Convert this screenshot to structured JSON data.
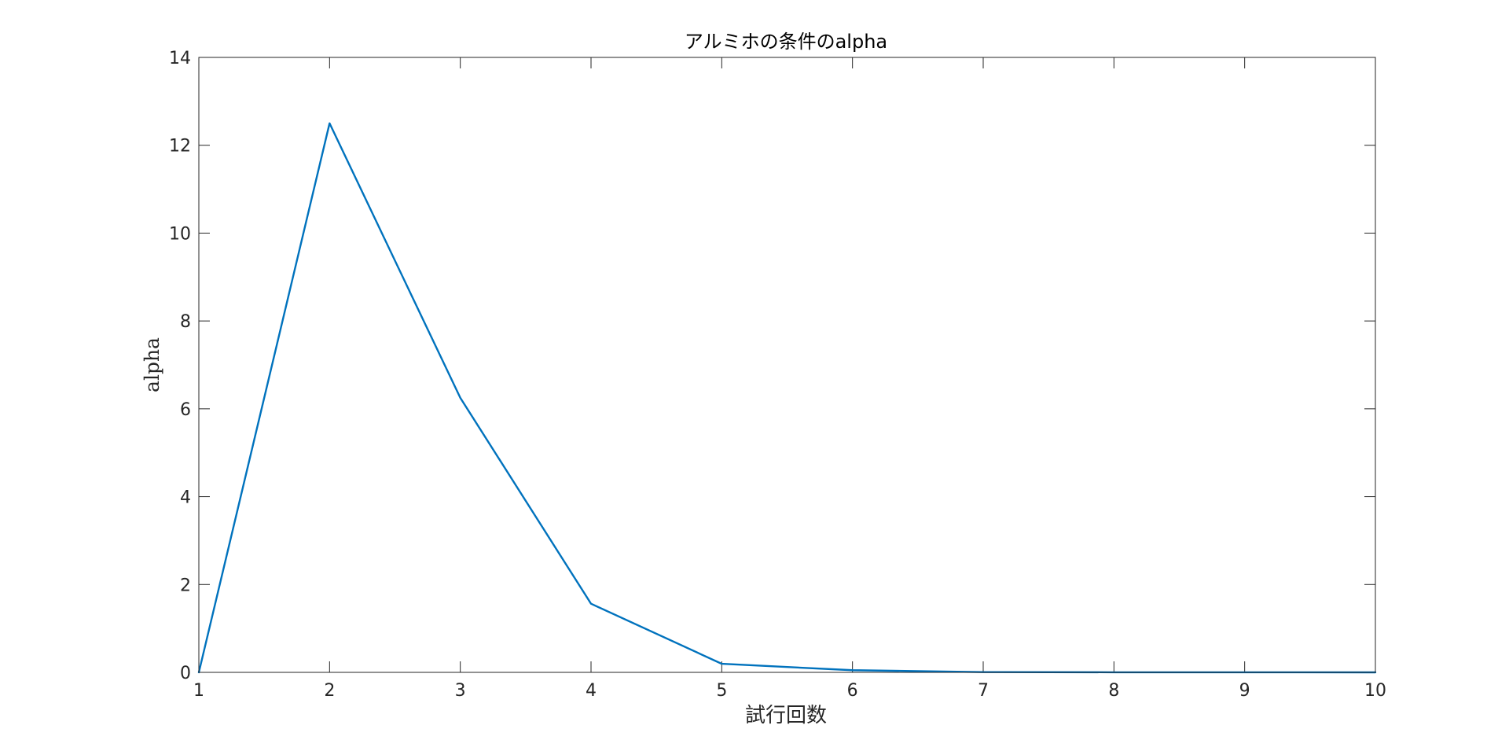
{
  "chart_data": {
    "type": "line",
    "title": "アルミホの条件のalpha",
    "xlabel": "試行回数",
    "ylabel": "alpha",
    "xlim": [
      1,
      10
    ],
    "ylim": [
      0,
      14
    ],
    "xticks": [
      "1",
      "2",
      "3",
      "4",
      "5",
      "6",
      "7",
      "8",
      "9",
      "10"
    ],
    "yticks": [
      "0",
      "2",
      "4",
      "6",
      "8",
      "10",
      "12",
      "14"
    ],
    "grid": false,
    "box": true,
    "series": [
      {
        "x": [
          1,
          2,
          3,
          4,
          5,
          6,
          7,
          8,
          9,
          10
        ],
        "values": [
          0,
          12.5,
          6.25,
          1.5625,
          0.195,
          0.049,
          0.006,
          0.002,
          0.0004,
          0.0001
        ],
        "color": "#0072BD"
      }
    ]
  }
}
